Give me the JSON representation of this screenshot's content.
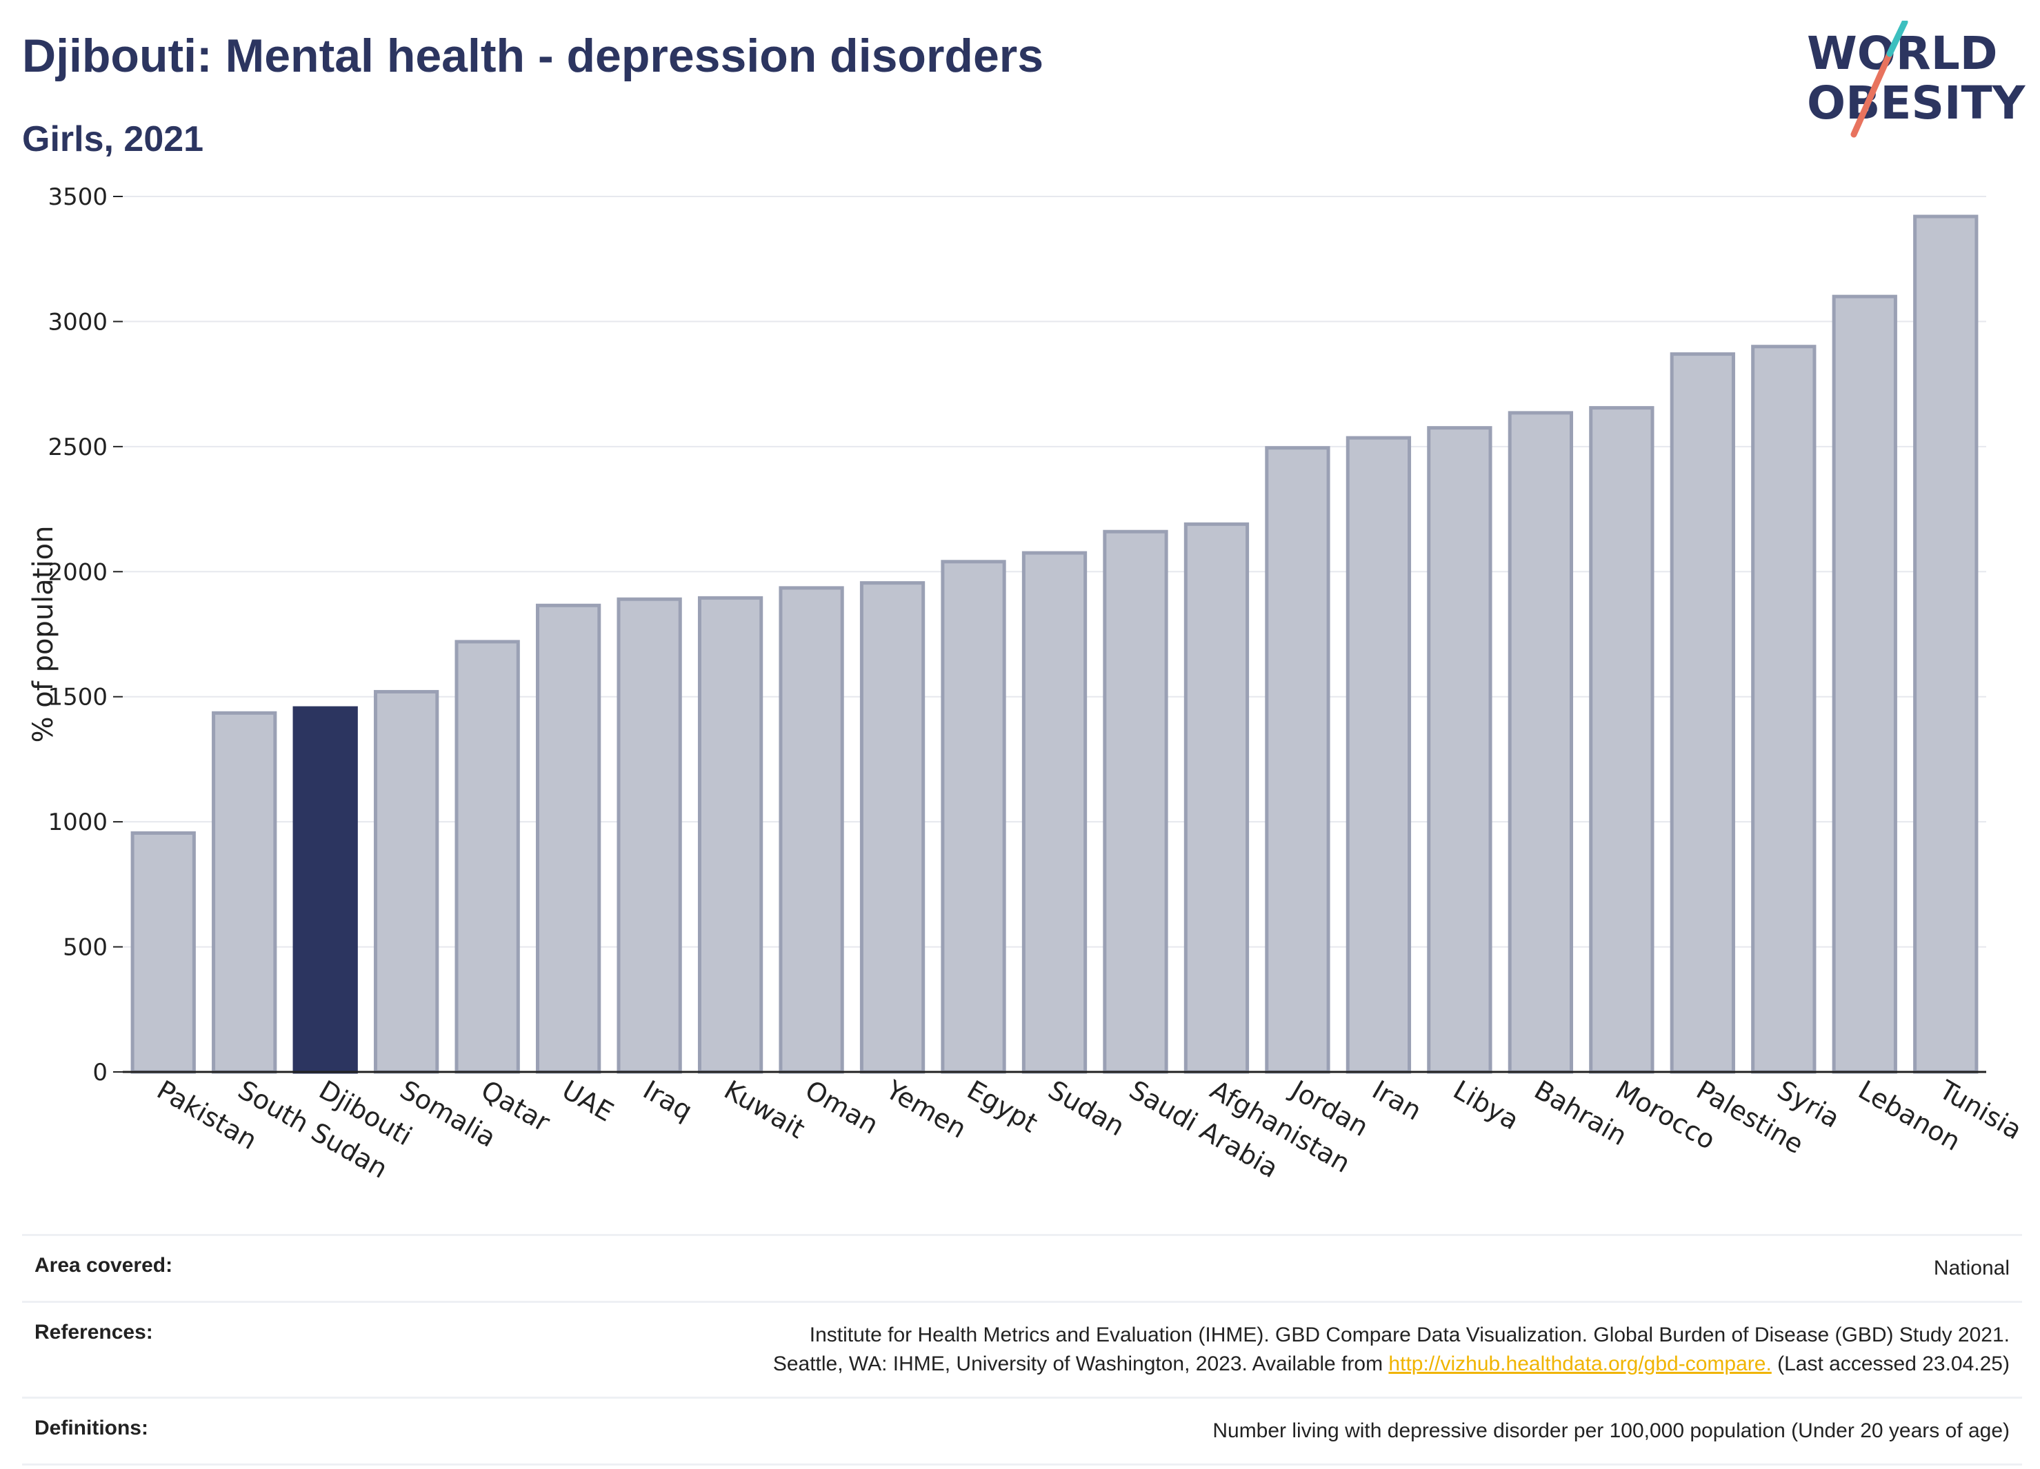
{
  "header": {
    "title": "Djibouti: Mental health - depression disorders",
    "subtitle": "Girls, 2021"
  },
  "logo": {
    "line1": "WORLD",
    "line2": "OBESITY"
  },
  "chart_data": {
    "type": "bar",
    "categories": [
      "Pakistan",
      "South Sudan",
      "Djibouti",
      "Somalia",
      "Qatar",
      "UAE",
      "Iraq",
      "Kuwait",
      "Oman",
      "Yemen",
      "Egypt",
      "Sudan",
      "Saudi Arabia",
      "Afghanistan",
      "Jordan",
      "Iran",
      "Libya",
      "Bahrain",
      "Morocco",
      "Palestine",
      "Syria",
      "Lebanon",
      "Tunisia"
    ],
    "values": [
      955,
      1435,
      1455,
      1520,
      1720,
      1865,
      1890,
      1895,
      1935,
      1955,
      2040,
      2075,
      2160,
      2190,
      2495,
      2535,
      2575,
      2635,
      2655,
      2870,
      2900,
      3100,
      3420
    ],
    "highlight": "Djibouti",
    "ylabel": "% of population",
    "ylim": [
      0,
      3500
    ],
    "yticks": [
      0,
      500,
      1000,
      1500,
      2000,
      2500,
      3000,
      3500
    ],
    "grid": true,
    "colors": {
      "bar": "#bfc3cf",
      "bar_edge": "#9aa0b4",
      "highlight": "#2c3560"
    }
  },
  "info": {
    "area_label": "Area covered:",
    "area_value": "National",
    "references_label": "References:",
    "references_line1": "Institute for Health Metrics and Evaluation (IHME). GBD Compare Data Visualization. Global Burden of Disease (GBD) Study 2021.",
    "references_line2_pre": "Seattle, WA: IHME, University of Washington, 2023. Available from ",
    "references_link": "http://vizhub.healthdata.org/gbd-compare.",
    "references_line2_post": " (Last accessed 23.04.25)",
    "definitions_label": "Definitions:",
    "definitions_value": "Number living with depressive disorder per 100,000 population (Under 20 years of age)"
  }
}
